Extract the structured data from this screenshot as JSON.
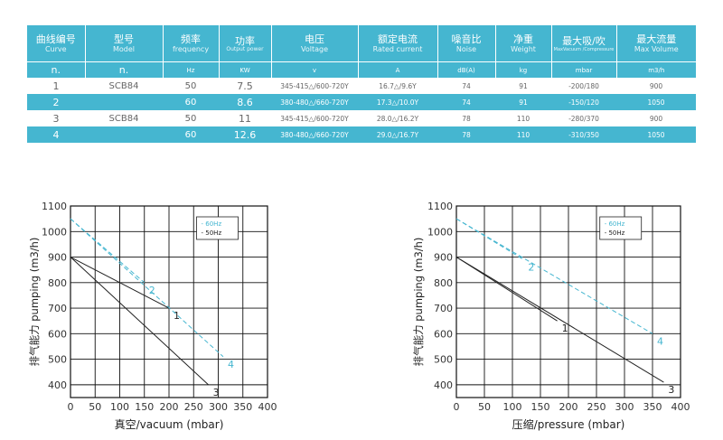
{
  "table": {
    "headers": [
      {
        "cn": "曲线编号",
        "en": "Curve",
        "unit": "n."
      },
      {
        "cn": "型号",
        "en": "Model",
        "unit": "n."
      },
      {
        "cn": "频率",
        "en": "frequency",
        "unit": "Hz"
      },
      {
        "cn": "功率",
        "en": "Output power",
        "unit": "KW"
      },
      {
        "cn": "电压",
        "en": "Voltage",
        "unit": "v"
      },
      {
        "cn": "额定电流",
        "en": "Rated current",
        "unit": "A"
      },
      {
        "cn": "噪音比",
        "en": "Noise",
        "unit": "dB(A)"
      },
      {
        "cn": "净重",
        "en": "Weight",
        "unit": "kg"
      },
      {
        "cn": "最大吸/吹",
        "en": "MaxVacuum /Compressure",
        "unit": "mbar"
      },
      {
        "cn": "最大流量",
        "en": "Max Volume",
        "unit": "m3/h"
      }
    ],
    "rows": [
      [
        "1",
        "SCB84",
        "50",
        "7.5",
        "345-415△/600-720Y",
        "16.7△/9.6Y",
        "74",
        "91",
        "-200/180",
        "900"
      ],
      [
        "2",
        "",
        "60",
        "8.6",
        "380-480△/660-720Y",
        "17.3△/10.0Y",
        "74",
        "91",
        "-150/120",
        "1050"
      ],
      [
        "3",
        "SCB84",
        "50",
        "11",
        "345-415△/600-720Y",
        "28.0△/16.2Y",
        "78",
        "110",
        "-280/370",
        "900"
      ],
      [
        "4",
        "",
        "60",
        "12.6",
        "380-480△/660-720Y",
        "29.0△/16.7Y",
        "78",
        "110",
        "-310/350",
        "1050"
      ]
    ]
  },
  "colors": {
    "band": "#45b6d0",
    "line_50hz": "#222222",
    "line_60hz": "#45b6d0",
    "grid": "#111111"
  },
  "chart_data": [
    {
      "type": "line",
      "xlabel": "真空/vacuum (mbar)",
      "ylabel": "排气能力 pumping (m3/h)",
      "xlim": [
        0,
        400
      ],
      "ylim": [
        350,
        1100
      ],
      "xticks": [
        0,
        50,
        100,
        150,
        200,
        250,
        300,
        350,
        400
      ],
      "yticks": [
        400,
        500,
        600,
        700,
        800,
        900,
        1000,
        1100
      ],
      "grid": true,
      "legend": {
        "placement": "top-right",
        "entries": [
          "- 60Hz",
          "- 50Hz"
        ]
      },
      "series": [
        {
          "name": "1",
          "freq": "50Hz",
          "x": [
            0,
            200
          ],
          "y": [
            900,
            700
          ]
        },
        {
          "name": "2",
          "freq": "60Hz",
          "x": [
            0,
            150
          ],
          "y": [
            1050,
            800
          ]
        },
        {
          "name": "3",
          "freq": "50Hz",
          "x": [
            0,
            280
          ],
          "y": [
            900,
            400
          ]
        },
        {
          "name": "4",
          "freq": "60Hz",
          "x": [
            0,
            310
          ],
          "y": [
            1050,
            510
          ]
        }
      ]
    },
    {
      "type": "line",
      "xlabel": "压缩/pressure (mbar)",
      "ylabel": "排气能力 pumping (m3/h)",
      "xlim": [
        0,
        400
      ],
      "ylim": [
        350,
        1100
      ],
      "xticks": [
        0,
        50,
        100,
        150,
        200,
        250,
        300,
        350,
        400
      ],
      "yticks": [
        400,
        500,
        600,
        700,
        800,
        900,
        1000,
        1100
      ],
      "grid": true,
      "legend": {
        "placement": "top-right",
        "entries": [
          "- 60Hz",
          "- 50Hz"
        ]
      },
      "series": [
        {
          "name": "1",
          "freq": "50Hz",
          "x": [
            0,
            180
          ],
          "y": [
            900,
            650
          ]
        },
        {
          "name": "2",
          "freq": "60Hz",
          "x": [
            0,
            120
          ],
          "y": [
            1050,
            890
          ]
        },
        {
          "name": "3",
          "freq": "50Hz",
          "x": [
            0,
            370
          ],
          "y": [
            900,
            410
          ]
        },
        {
          "name": "4",
          "freq": "60Hz",
          "x": [
            0,
            350
          ],
          "y": [
            1050,
            600
          ]
        }
      ]
    }
  ]
}
